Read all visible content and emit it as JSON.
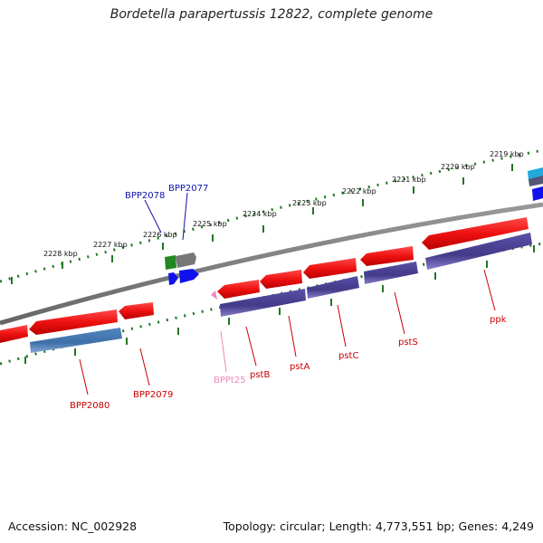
{
  "title": "Bordetella parapertussis 12822, complete genome",
  "footer": {
    "accession": "Accession: NC_002928",
    "topology": "Topology: circular; Length: 4,773,551 bp; Genes: 4,249"
  },
  "scale_labels": [
    "2219 kbp",
    "2220 kbp",
    "2221 kbp",
    "2222 kbp",
    "2223 kbp",
    "2224 kbp",
    "2225 kbp",
    "2226 kbp",
    "2227 kbp",
    "2228 kbp"
  ],
  "gene_labels": {
    "BPP2078": "BPP2078",
    "BPP2077": "BPP2077",
    "BPP2080": "BPP2080",
    "BPP2079": "BPP2079",
    "BPPt25": "BPPt25",
    "pstB": "pstB",
    "pstA": "pstA",
    "pstC": "pstC",
    "pstS": "pstS",
    "ppk": "ppk"
  },
  "colors": {
    "cds": "#ee1111",
    "cds_label": "#cc0000",
    "protein": "#4a4090",
    "protein_alt": "#4a7ab0",
    "upper_label": "#1111aa",
    "trna": "#ee88bb",
    "backbone": "#777777",
    "tick": "#227722"
  }
}
